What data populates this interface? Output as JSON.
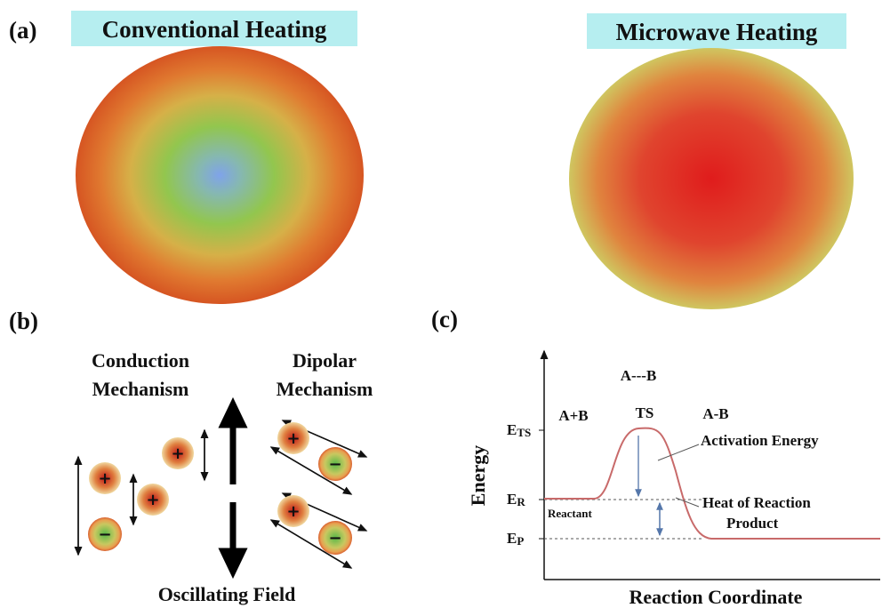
{
  "panel_a": {
    "label": "(a)",
    "left_title": "Conventional Heating",
    "right_title": "Microwave Heating"
  },
  "panel_b": {
    "label": "(b)",
    "conduction": [
      "Conduction",
      "Mechanism"
    ],
    "dipolar": [
      "Dipolar",
      "Mechanism"
    ],
    "field": "Oscillating Field",
    "plus": "+",
    "minus": "−"
  },
  "panel_c": {
    "label": "(c)",
    "y_axis": "Energy",
    "x_axis": "Reaction Coordinate",
    "complex": "A---B",
    "ts": "TS",
    "reactants": "A+B",
    "product_species": "A-B",
    "levels": [
      {
        "symbol": "E",
        "subscript": "TS"
      },
      {
        "symbol": "E",
        "subscript": "R"
      },
      {
        "symbol": "E",
        "subscript": "P"
      }
    ],
    "activation": "Activation Energy",
    "heat": "Heat of Reaction",
    "product": "Product",
    "reactant": "Reactant"
  }
}
